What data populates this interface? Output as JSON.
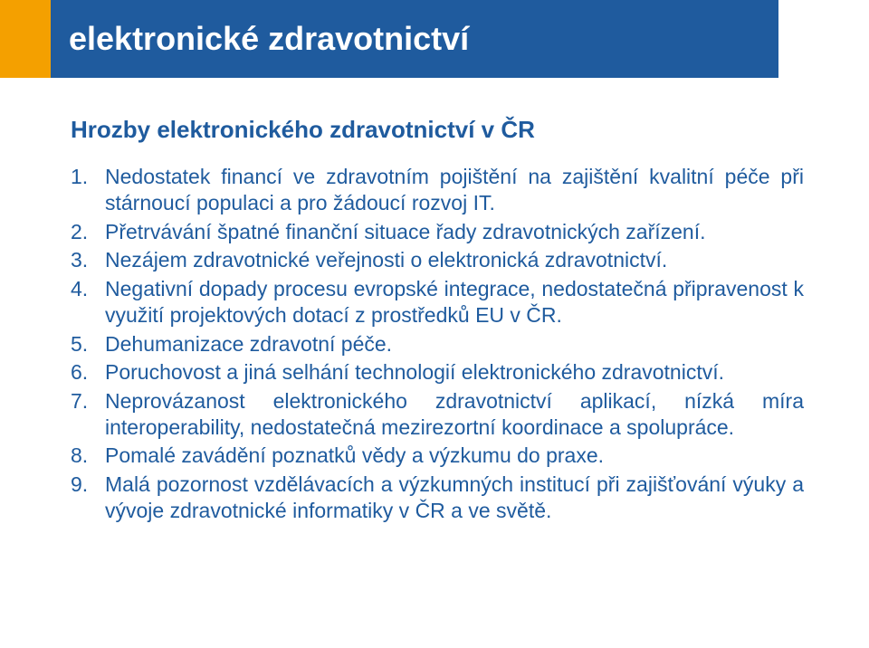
{
  "colors": {
    "banner_left": "#f4a000",
    "banner_right": "#1f5b9e",
    "title_text": "#ffffff",
    "subtitle_text": "#1f5b9e",
    "body_text": "#1f5b9e",
    "background": "#ffffff"
  },
  "header": {
    "title": "elektronické zdravotnictví"
  },
  "subtitle": "Hrozby elektronického zdravotnictví v ČR",
  "items": [
    "Nedostatek financí ve zdravotním pojištění na zajištění kvalitní péče při stárnoucí populaci a pro žádoucí rozvoj IT.",
    "Přetrvávání špatné finanční situace řady zdravotnických zařízení.",
    "Nezájem zdravotnické veřejnosti o elektronická zdravotnictví.",
    "Negativní dopady procesu evropské integrace, nedostatečná připravenost k využití projektových dotací z prostředků EU v ČR.",
    "Dehumanizace zdravotní péče.",
    "Poruchovost a jiná selhání technologií elektronického zdravotnictví.",
    "Neprovázanost elektronického zdravotnictví aplikací, nízká míra interoperability, nedostatečná mezirezortní koordinace a spolupráce.",
    "Pomalé zavádění poznatků vědy a výzkumu do praxe.",
    "Malá pozornost vzdělávacích a výzkumných institucí při zajišťování výuky a vývoje zdravotnické informatiky v ČR a ve světě."
  ]
}
